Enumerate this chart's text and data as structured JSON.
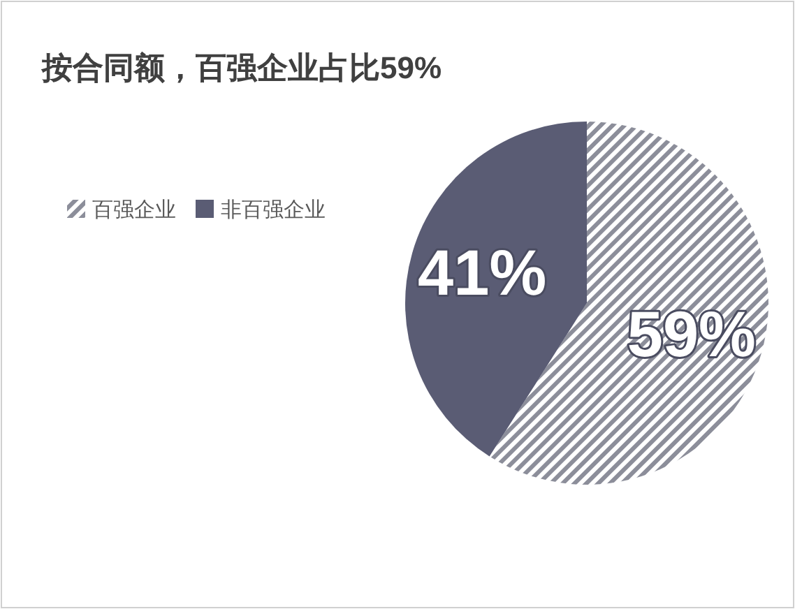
{
  "chart_data": {
    "type": "pie",
    "title": "按合同额，百强企业占比59%",
    "categories": [
      "百强企业",
      "非百强企业"
    ],
    "values": [
      59,
      41
    ],
    "colors": [
      "#8c8e9a",
      "#5a5c74"
    ],
    "value_labels": [
      "59%",
      "41%"
    ],
    "legend": "top left"
  }
}
